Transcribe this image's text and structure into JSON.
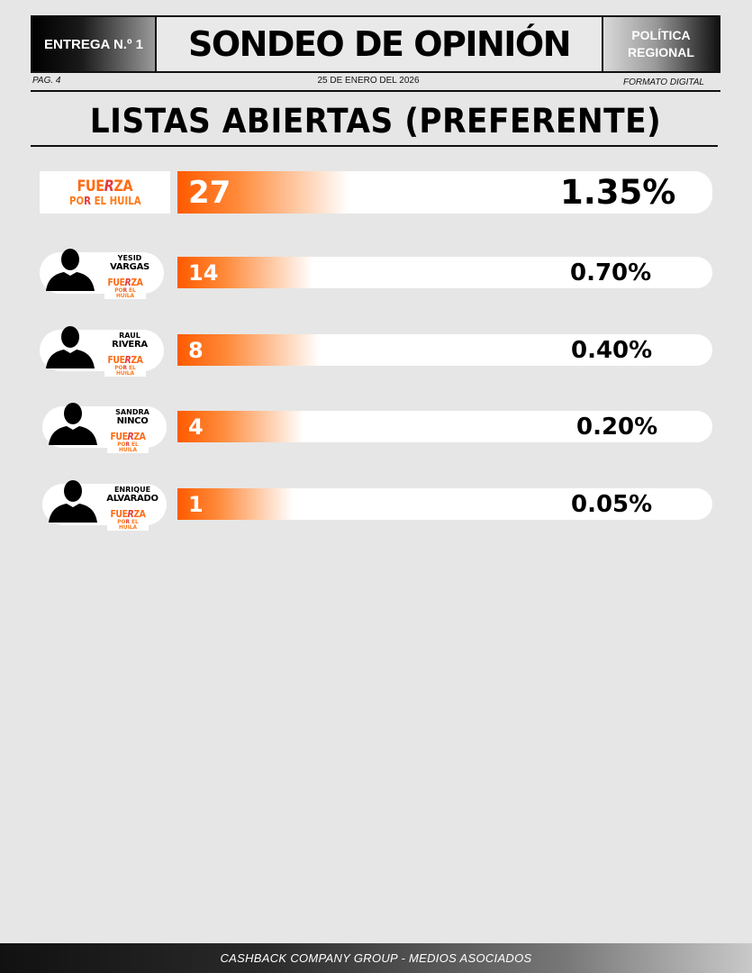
{
  "header": {
    "issue": "ENTREGA N.º 1",
    "title": "SONDEO DE OPINIÓN",
    "section_line1": "POLÍTICA",
    "section_line2": "REGIONAL",
    "page": "PAG. 4",
    "date": "25 DE ENERO DEL 2026",
    "format": "FORMATO DIGITAL"
  },
  "section_title": "LISTAS ABIERTAS (PREFERENTE)",
  "logo": {
    "line1_a": "FUE",
    "line1_r": "R",
    "line1_b": "ZA",
    "line2_a": "PO",
    "line2_r": "R",
    "line2_b": " EL HUILA"
  },
  "party": {
    "count": "27",
    "percent": "1.35%",
    "share": 1.35
  },
  "candidates": [
    {
      "first_name": "YESID",
      "last_name": "VARGAS",
      "count": "14",
      "percent": "0.70%",
      "share": 0.7
    },
    {
      "first_name": "RAUL",
      "last_name": "RIVERA",
      "count": "8",
      "percent": "0.40%",
      "share": 0.4
    },
    {
      "first_name": "SANDRA",
      "last_name": "NINCO",
      "count": "4",
      "percent": "0.20%",
      "share": 0.2
    },
    {
      "first_name": "ENRIQUE",
      "last_name": "ALVARADO",
      "count": "1",
      "percent": "0.05%",
      "share": 0.05
    }
  ],
  "footer": "CASHBACK COMPANY GROUP - MEDIOS ASOCIADOS",
  "colors": {
    "accent": "#ff5a00",
    "background": "#e6e6e6"
  }
}
